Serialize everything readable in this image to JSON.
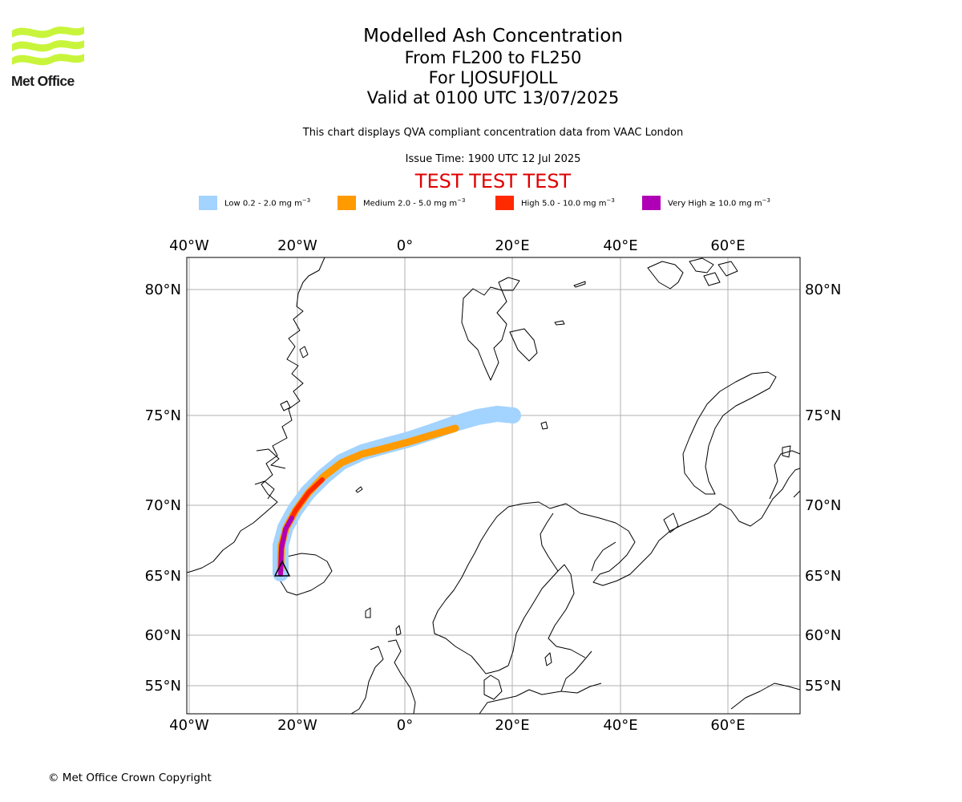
{
  "header": {
    "logo_text": "Met Office",
    "title": "Modelled Ash Concentration",
    "subtitle_levels": "From FL200 to FL250",
    "subtitle_volcano": "For LJOSUFJOLL",
    "subtitle_valid": "Valid at 0100 UTC 13/07/2025",
    "description": "This chart displays QVA compliant concentration data from VAAC London",
    "issue_time": "Issue Time: 1900 UTC 12 Jul 2025",
    "test_banner": "TEST TEST TEST"
  },
  "legend": [
    {
      "label": "Low 0.2 - 2.0 mg m",
      "unit_exp": "−3",
      "color": "#a3d3ff"
    },
    {
      "label": "Medium 2.0 - 5.0 mg m",
      "unit_exp": "−3",
      "color": "#ff9a00"
    },
    {
      "label": "High 5.0 - 10.0 mg m",
      "unit_exp": "−3",
      "color": "#ff2a00"
    },
    {
      "label": "Very High  ≥  10.0 mg m",
      "unit_exp": "−3",
      "color": "#b000b5"
    }
  ],
  "map": {
    "lon_ticks": [
      "40°W",
      "20°W",
      "0°",
      "20°E",
      "40°E",
      "60°E"
    ],
    "lat_ticks": [
      "80°N",
      "75°N",
      "70°N",
      "65°N",
      "60°N",
      "55°N"
    ],
    "volcano_symbol": "triangle"
  },
  "footer": {
    "copyright": "© Met Office Crown Copyright"
  }
}
